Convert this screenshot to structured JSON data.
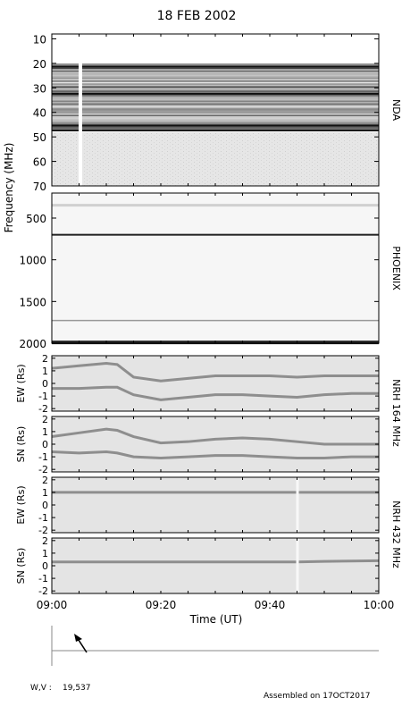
{
  "title": "18 FEB 2002",
  "footer": {
    "assembled": "Assembled on 17OCT2017",
    "wv_label": "W,V :",
    "wv_value": "19,537"
  },
  "chart_data": [
    {
      "type": "heatmap",
      "instrument": "NDA",
      "ylabel": "Frequency (MHz)",
      "yticks": [
        10,
        20,
        30,
        40,
        50,
        60,
        70
      ],
      "ylim": [
        70,
        8
      ],
      "x_time_range": [
        "09:00",
        "10:00"
      ],
      "description_bands": [
        {
          "from_mhz": 20,
          "to_mhz": 47,
          "intensity": "heavy horizontal striping"
        },
        {
          "from_mhz": 47,
          "to_mhz": 70,
          "intensity": "uniform light grey"
        }
      ],
      "gap_time": "09:05"
    },
    {
      "type": "heatmap",
      "instrument": "PHOENIX",
      "yticks": [
        500,
        1000,
        1500,
        2000
      ],
      "ylim": [
        2000,
        200
      ],
      "x_time_range": [
        "09:00",
        "10:00"
      ],
      "strong_lines_mhz": [
        700,
        1980
      ]
    },
    {
      "type": "line",
      "instrument": "NRH",
      "frequency_label": "164 MHz",
      "ylabel": "EW (Rs)",
      "yticks": [
        -2,
        -1,
        0,
        1,
        2
      ],
      "ylim": [
        -2.2,
        2.2
      ],
      "x": [
        "09:00",
        "09:05",
        "09:10",
        "09:12",
        "09:15",
        "09:20",
        "09:25",
        "09:30",
        "09:35",
        "09:40",
        "09:45",
        "09:50",
        "09:55",
        "10:00"
      ],
      "series": [
        {
          "values": [
            1.2,
            1.4,
            1.6,
            1.5,
            0.5,
            0.2,
            0.4,
            0.6,
            0.6,
            0.6,
            0.5,
            0.6,
            0.6,
            0.6
          ]
        },
        {
          "values": [
            -0.4,
            -0.4,
            -0.3,
            -0.3,
            -0.9,
            -1.3,
            -1.1,
            -0.9,
            -0.9,
            -1.0,
            -1.1,
            -0.9,
            -0.8,
            -0.8
          ]
        }
      ]
    },
    {
      "type": "line",
      "instrument": "NRH",
      "frequency_label": "164 MHz",
      "ylabel": "SN (Rs)",
      "yticks": [
        -2,
        -1,
        0,
        1,
        2
      ],
      "ylim": [
        -2.2,
        2.2
      ],
      "x": [
        "09:00",
        "09:05",
        "09:10",
        "09:12",
        "09:15",
        "09:20",
        "09:25",
        "09:30",
        "09:35",
        "09:40",
        "09:45",
        "09:50",
        "09:55",
        "10:00"
      ],
      "series": [
        {
          "values": [
            0.6,
            0.9,
            1.2,
            1.1,
            0.6,
            0.1,
            0.2,
            0.4,
            0.5,
            0.4,
            0.2,
            0.0,
            0.0,
            0.0
          ]
        },
        {
          "values": [
            -0.6,
            -0.7,
            -0.6,
            -0.7,
            -1.0,
            -1.1,
            -1.0,
            -0.9,
            -0.9,
            -1.0,
            -1.1,
            -1.1,
            -1.0,
            -1.0
          ]
        }
      ]
    },
    {
      "type": "line",
      "instrument": "NRH",
      "frequency_label": "432 MHz",
      "ylabel": "EW (Rs)",
      "yticks": [
        -2,
        -1,
        0,
        1,
        2
      ],
      "ylim": [
        -2.2,
        2.2
      ],
      "x": [
        "09:00",
        "09:10",
        "09:20",
        "09:30",
        "09:40",
        "09:45",
        "09:50",
        "10:00"
      ],
      "series": [
        {
          "values": [
            1.0,
            1.0,
            1.0,
            1.0,
            1.0,
            1.0,
            1.0,
            1.0
          ]
        }
      ],
      "event_time": "09:45"
    },
    {
      "type": "line",
      "instrument": "NRH",
      "frequency_label": "432 MHz",
      "ylabel": "SN (Rs)",
      "yticks": [
        -2,
        -1,
        0,
        1,
        2
      ],
      "ylim": [
        -2.2,
        2.2
      ],
      "x": [
        "09:00",
        "09:10",
        "09:20",
        "09:30",
        "09:40",
        "09:45",
        "09:50",
        "10:00"
      ],
      "series": [
        {
          "values": [
            0.3,
            0.3,
            0.3,
            0.3,
            0.3,
            0.3,
            0.35,
            0.4
          ]
        }
      ],
      "event_time": "09:45"
    }
  ],
  "time_axis": {
    "label": "Time (UT)",
    "ticks": [
      "09:00",
      "09:20",
      "09:40",
      "10:00"
    ]
  }
}
